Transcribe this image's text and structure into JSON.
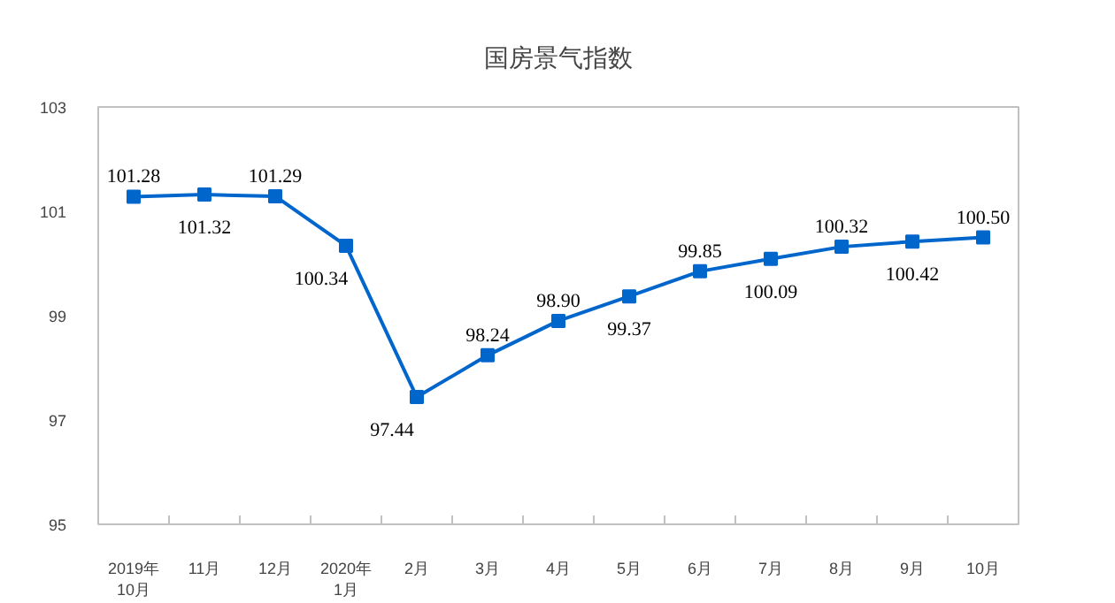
{
  "chart_data": {
    "type": "line",
    "title": "国房景气指数",
    "categories": [
      "2019年\n10月",
      "11月",
      "12月",
      "2020年\n1月",
      "2月",
      "3月",
      "4月",
      "5月",
      "6月",
      "7月",
      "8月",
      "9月",
      "10月"
    ],
    "series": [
      {
        "color": "#0066cc",
        "values": [
          101.28,
          101.32,
          101.29,
          100.34,
          97.44,
          98.24,
          98.9,
          99.37,
          99.85,
          100.09,
          100.32,
          100.42,
          100.5
        ]
      }
    ],
    "value_labels": [
      "101.28",
      "101.32",
      "101.29",
      "100.34",
      "97.44",
      "98.24",
      "98.90",
      "99.37",
      "99.85",
      "100.09",
      "100.32",
      "100.42",
      "100.50"
    ],
    "ylim": [
      95,
      103
    ],
    "yticks": [
      95,
      97,
      99,
      101,
      103
    ],
    "grid": false,
    "marker": "square",
    "line_style": "solid"
  }
}
